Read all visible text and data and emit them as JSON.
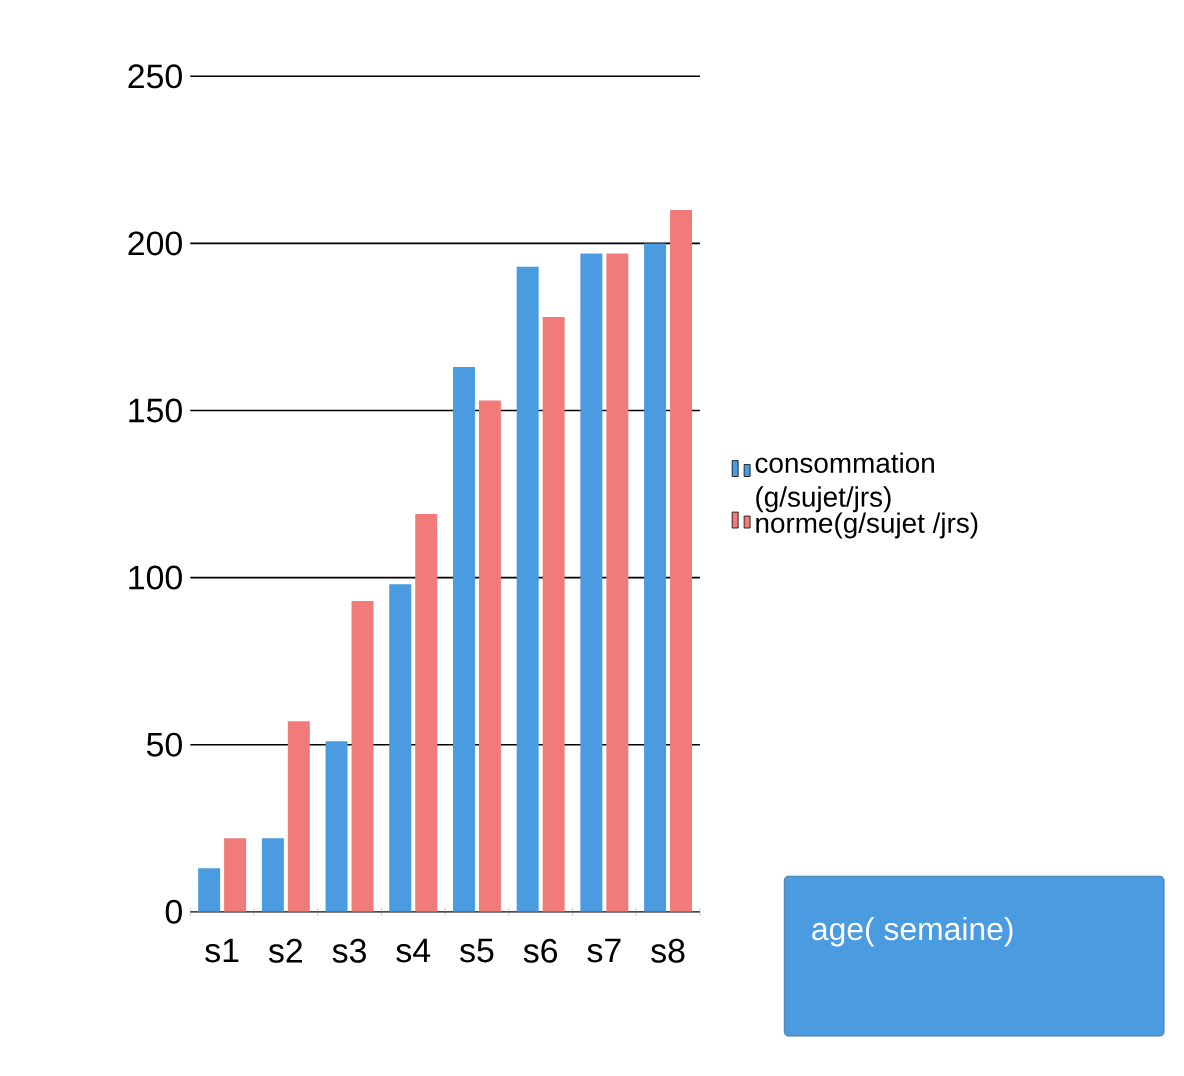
{
  "chart_data": {
    "type": "bar",
    "categories": [
      "s1",
      "s2",
      "s3",
      "s4",
      "s5",
      "s6",
      "s7",
      "s8"
    ],
    "series": [
      {
        "name": "consommation (g/sujet/jrs)",
        "color": "#4a9be0",
        "values": [
          13,
          22,
          51,
          98,
          163,
          193,
          197,
          200
        ]
      },
      {
        "name": "norme(g/sujet /jrs)",
        "color": "#f07b78",
        "values": [
          22,
          57,
          93,
          119,
          153,
          178,
          197,
          210
        ]
      }
    ],
    "xlabel": "age( semaine)",
    "ylim": [
      0,
      250
    ],
    "yticks": [
      0,
      50,
      100,
      150,
      200,
      250
    ],
    "grid": "y",
    "legend": "right"
  }
}
